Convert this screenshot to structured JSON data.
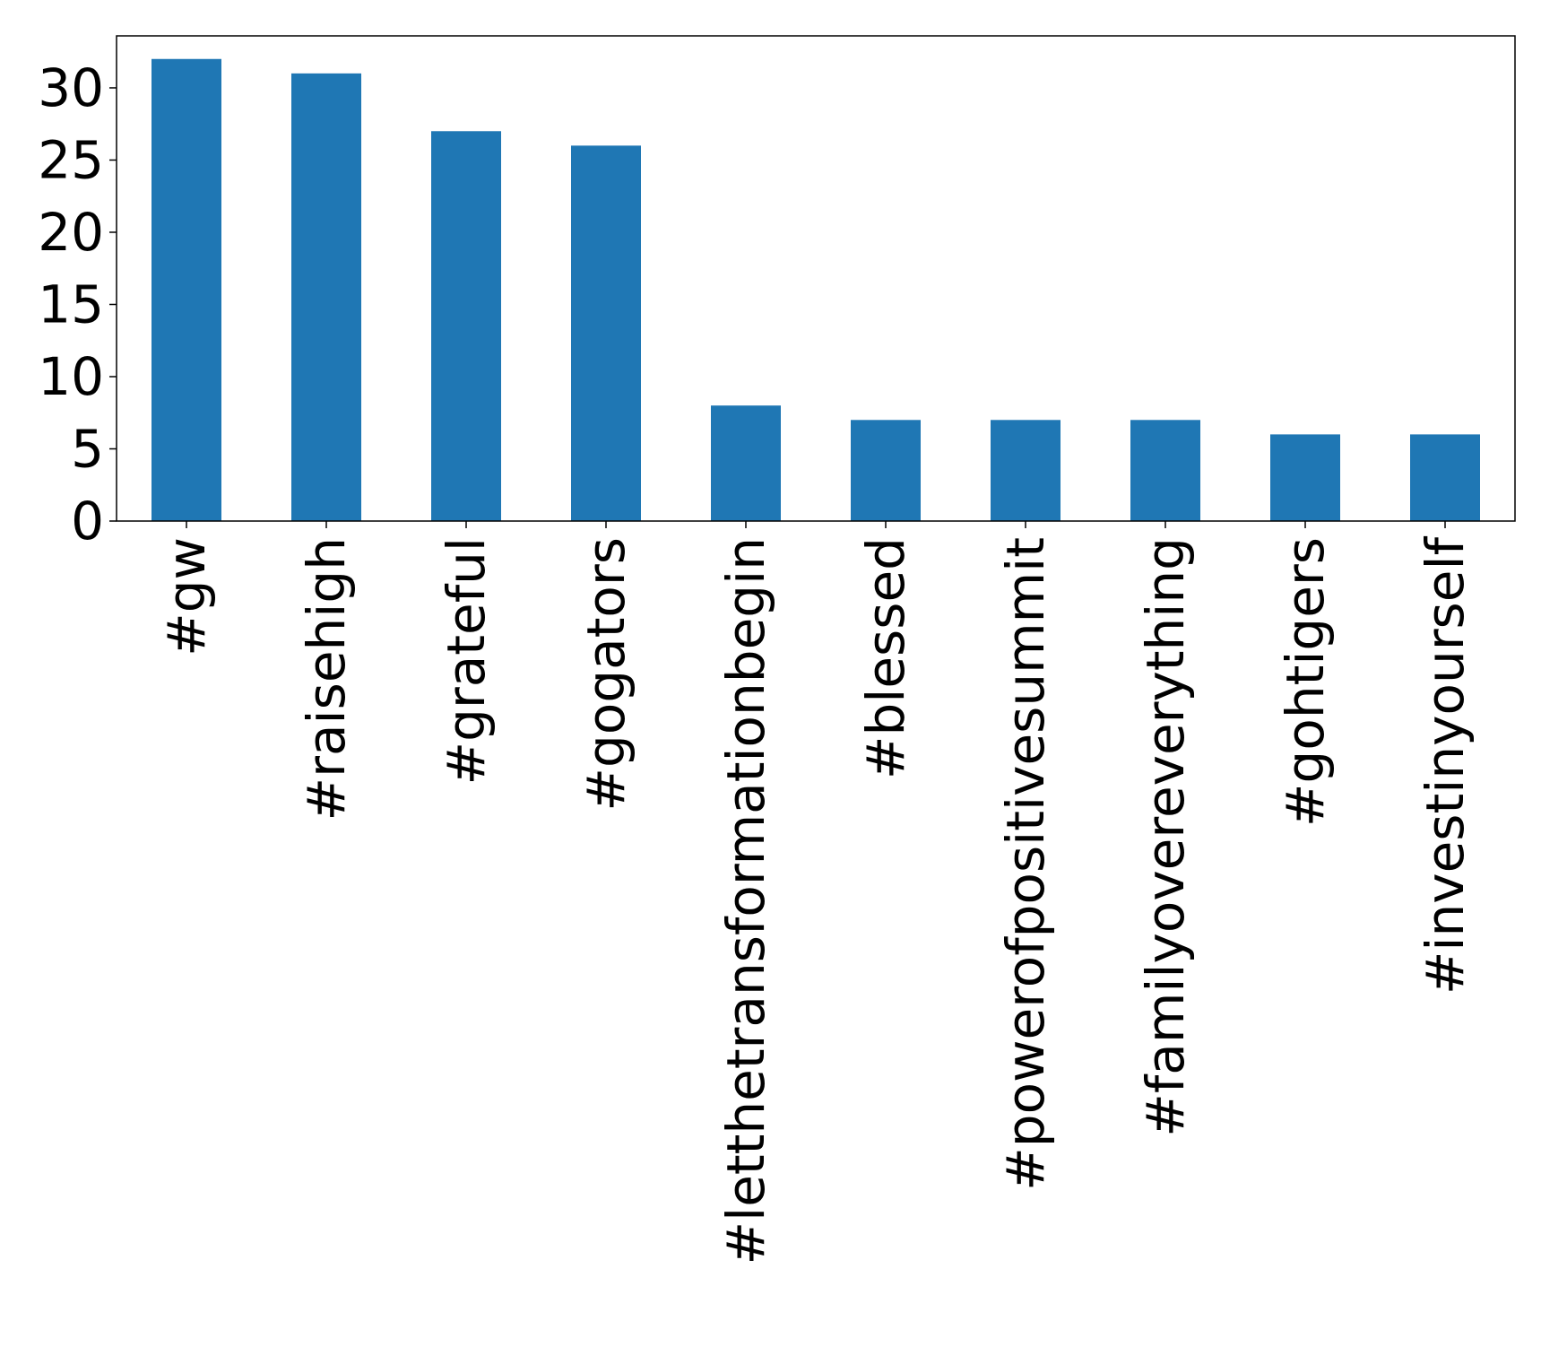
{
  "chart_data": {
    "type": "bar",
    "title": "",
    "xlabel": "",
    "ylabel": "",
    "categories": [
      "#gw",
      "#raisehigh",
      "#grateful",
      "#gogators",
      "#letthetransformationbegin",
      "#blessed",
      "#powerofpositivesummit",
      "#familyovereverything",
      "#gohtigers",
      "#investinyourself"
    ],
    "values": [
      32,
      31,
      27,
      26,
      8,
      7,
      7,
      7,
      6,
      6
    ],
    "ylim": [
      0,
      33.6
    ],
    "yticks": [
      0,
      5,
      10,
      15,
      20,
      25,
      30
    ],
    "grid": false,
    "legend": "none",
    "colors": {
      "bar": "#1f77b4",
      "axes": "#000000",
      "text": "#000000"
    }
  }
}
